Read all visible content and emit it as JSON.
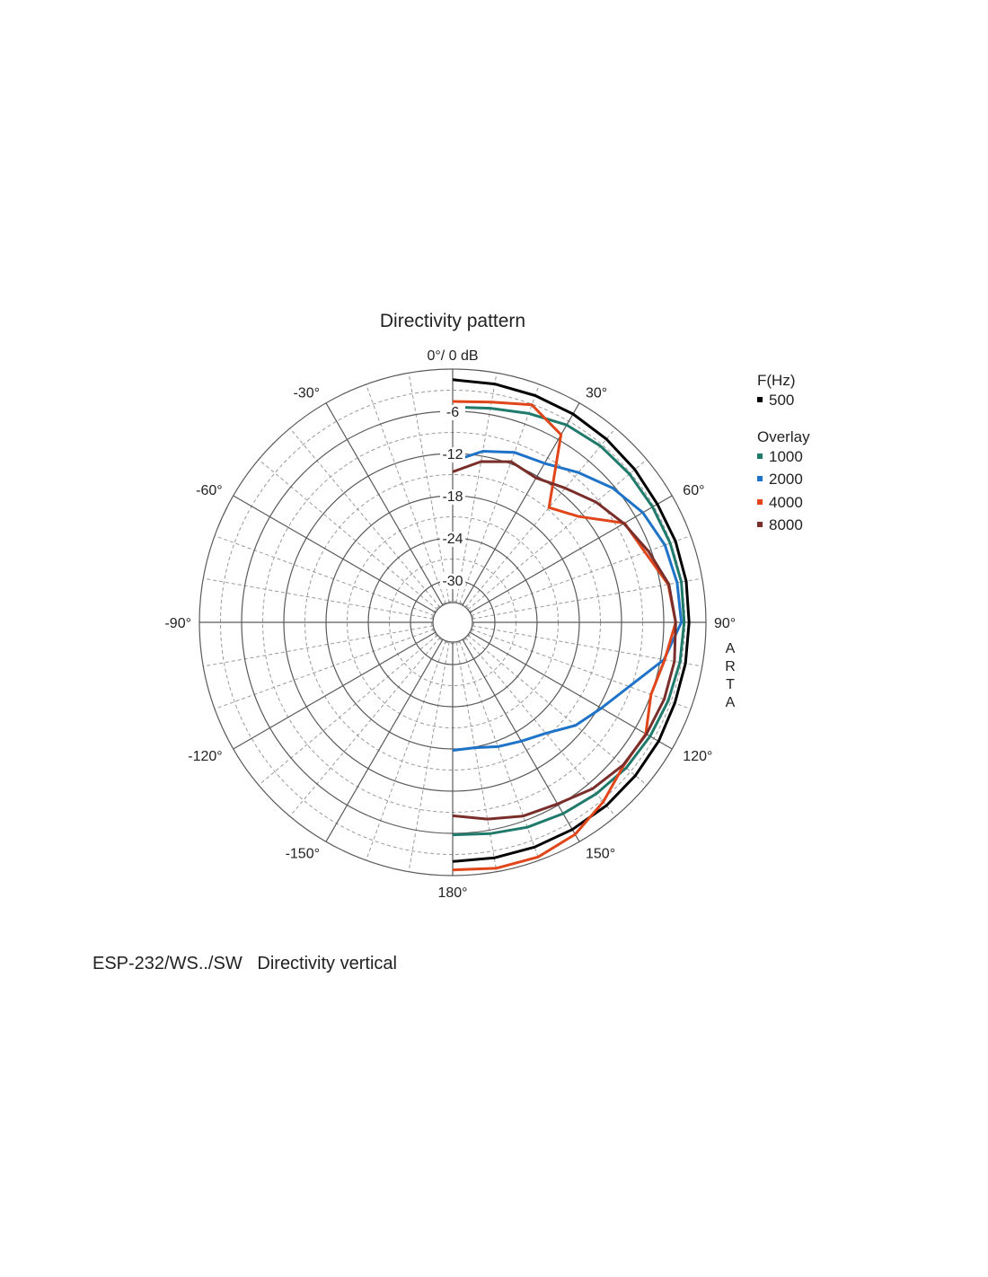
{
  "chart_data": {
    "type": "polar-line",
    "title": "Directivity pattern",
    "top_label": "0°/ 0 dB",
    "radial_axis": {
      "range_db": [
        -36,
        0
      ],
      "tick_labels": [
        "-6",
        "-12",
        "-18",
        "-24",
        "-30"
      ],
      "tick_values": [
        -6,
        -12,
        -18,
        -24,
        -30
      ]
    },
    "angle_labels": [
      {
        "angle": 30,
        "label": "30°"
      },
      {
        "angle": 60,
        "label": "60°"
      },
      {
        "angle": 90,
        "label": "90°"
      },
      {
        "angle": 120,
        "label": "120°"
      },
      {
        "angle": 150,
        "label": "150°"
      },
      {
        "angle": 180,
        "label": "180°"
      },
      {
        "angle": -150,
        "label": "-150°"
      },
      {
        "angle": -120,
        "label": "-120°"
      },
      {
        "angle": -90,
        "label": "-90°"
      },
      {
        "angle": -60,
        "label": "-60°"
      },
      {
        "angle": -30,
        "label": "-30°"
      }
    ],
    "side_text": [
      "A",
      "R",
      "T",
      "A"
    ],
    "grid": true,
    "legend": {
      "placement": "right",
      "header": "F(Hz)",
      "overlay_header": "Overlay",
      "entries": [
        {
          "name": "500",
          "color": "#000000"
        },
        {
          "name": "1000",
          "color": "#1f7a6c"
        },
        {
          "name": "2000",
          "color": "#1e73c8"
        },
        {
          "name": "4000",
          "color": "#e0461a"
        },
        {
          "name": "8000",
          "color": "#7a2e2a"
        }
      ]
    },
    "angles_deg": [
      0,
      10,
      20,
      30,
      40,
      50,
      60,
      70,
      80,
      90,
      100,
      110,
      120,
      130,
      140,
      150,
      160,
      170,
      180
    ],
    "series": [
      {
        "name": "500",
        "color": "#000000",
        "values_db": [
          -1.5,
          -1.6,
          -1.7,
          -1.8,
          -2,
          -2.2,
          -2.4,
          -2.3,
          -2.3,
          -2.4,
          -2.4,
          -2.4,
          -2.2,
          -2.1,
          -2,
          -2,
          -2,
          -2,
          -2
        ]
      },
      {
        "name": "1000",
        "color": "#1f7a6c",
        "values_db": [
          -5.4,
          -5.1,
          -4.4,
          -3.6,
          -3.3,
          -3.2,
          -3.2,
          -3.1,
          -3,
          -3.1,
          -3.2,
          -3.4,
          -3.6,
          -3.8,
          -4.2,
          -4.6,
          -5,
          -5.5,
          -5.8
        ]
      },
      {
        "name": "2000",
        "color": "#1e73c8",
        "values_db": [
          -13.1,
          -11.3,
          -10.3,
          -9.9,
          -8.2,
          -6.3,
          -4.8,
          -3.9,
          -3.6,
          -3.5,
          -5.5,
          -9.3,
          -11.6,
          -13.2,
          -15.4,
          -16.5,
          -17.2,
          -17.9,
          -17.8
        ]
      },
      {
        "name": "4000",
        "color": "#e0461a",
        "values_db": [
          -4.6,
          -4.2,
          -3.1,
          -5.2,
          -14.7,
          -12.6,
          -7.8,
          -6.9,
          -4.9,
          -4.3,
          -5.4,
          -6,
          -4.3,
          -4.3,
          -2.7,
          -1.2,
          -0.5,
          -0.5,
          -0.8
        ]
      },
      {
        "name": "8000",
        "color": "#7a2e2a",
        "values_db": [
          -14.6,
          -12.8,
          -11.7,
          -12.3,
          -11.1,
          -9.4,
          -7.9,
          -6.4,
          -4.8,
          -4.3,
          -4,
          -4,
          -4.2,
          -4.4,
          -5.1,
          -6.2,
          -6.7,
          -7.6,
          -8.5
        ]
      }
    ]
  },
  "caption": {
    "model": "ESP-232/WS../SW",
    "description": "Directivity vertical"
  }
}
